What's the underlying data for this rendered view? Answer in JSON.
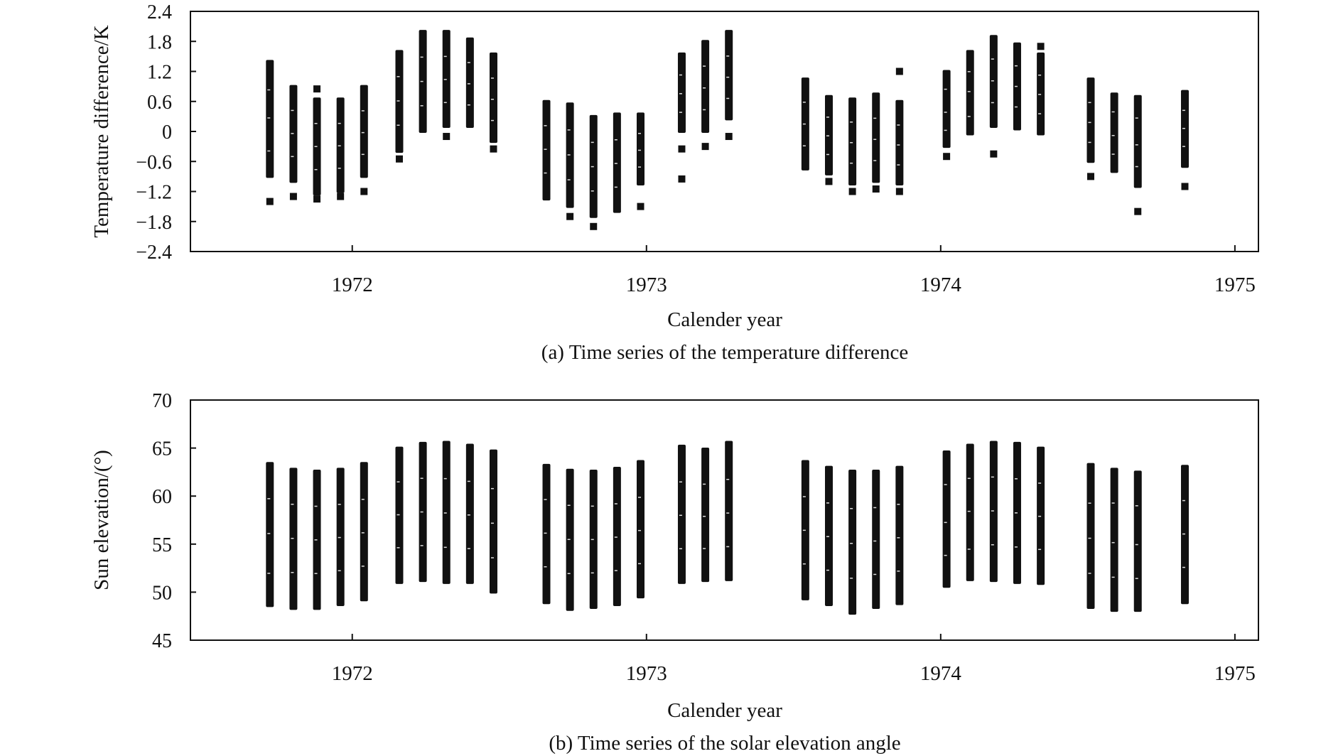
{
  "colors": {
    "marker": "#111111",
    "axis": "#111111",
    "background": "#ffffff"
  },
  "chart_data": [
    {
      "type": "scatter",
      "caption": "(a) Time series of the temperature difference",
      "xlabel": "Calender year",
      "ylabel": "Temperature difference/K",
      "xlim": [
        1971.45,
        1975.08
      ],
      "ylim": [
        -2.4,
        2.4
      ],
      "x_ticks": [
        1972,
        1973,
        1974,
        1975
      ],
      "x_tick_labels": [
        "1972",
        "1973",
        "1974",
        "1975"
      ],
      "y_ticks": [
        2.4,
        1.8,
        1.2,
        0.6,
        0,
        -0.6,
        -1.2,
        -1.8,
        -2.4
      ],
      "y_tick_labels": [
        "2.4",
        "1.8",
        "1.2",
        "0.6",
        "0",
        "−0.6",
        "−1.2",
        "−1.8",
        "−2.4"
      ],
      "clusters": [
        {
          "x": 1971.72,
          "max": 1.4,
          "min": -0.9,
          "outliers": [
            -1.4
          ]
        },
        {
          "x": 1971.8,
          "max": 0.9,
          "min": -1.0,
          "outliers": [
            -1.3
          ]
        },
        {
          "x": 1971.88,
          "max": 0.65,
          "min": -1.25,
          "outliers": [
            0.85,
            -1.35
          ]
        },
        {
          "x": 1971.96,
          "max": 0.65,
          "min": -1.2,
          "outliers": [
            -1.3
          ]
        },
        {
          "x": 1972.04,
          "max": 0.9,
          "min": -0.9,
          "outliers": [
            -1.2
          ]
        },
        {
          "x": 1972.16,
          "max": 1.6,
          "min": -0.4,
          "outliers": [
            -0.55
          ]
        },
        {
          "x": 1972.24,
          "max": 2.0,
          "min": 0.0,
          "outliers": []
        },
        {
          "x": 1972.32,
          "max": 2.0,
          "min": 0.1,
          "outliers": [
            -0.1
          ]
        },
        {
          "x": 1972.4,
          "max": 1.85,
          "min": 0.1,
          "outliers": []
        },
        {
          "x": 1972.48,
          "max": 1.55,
          "min": -0.2,
          "outliers": [
            -0.35
          ]
        },
        {
          "x": 1972.66,
          "max": 0.6,
          "min": -1.35,
          "outliers": []
        },
        {
          "x": 1972.74,
          "max": 0.55,
          "min": -1.5,
          "outliers": [
            -1.7
          ]
        },
        {
          "x": 1972.82,
          "max": 0.3,
          "min": -1.7,
          "outliers": [
            -1.9
          ]
        },
        {
          "x": 1972.9,
          "max": 0.35,
          "min": -1.6,
          "outliers": []
        },
        {
          "x": 1972.98,
          "max": 0.35,
          "min": -1.05,
          "outliers": [
            -1.5
          ]
        },
        {
          "x": 1973.12,
          "max": 1.55,
          "min": 0.0,
          "outliers": [
            -0.35,
            -0.95
          ]
        },
        {
          "x": 1973.2,
          "max": 1.8,
          "min": 0.0,
          "outliers": [
            -0.3
          ]
        },
        {
          "x": 1973.28,
          "max": 2.0,
          "min": 0.25,
          "outliers": [
            -0.1
          ]
        },
        {
          "x": 1973.54,
          "max": 1.05,
          "min": -0.75,
          "outliers": []
        },
        {
          "x": 1973.62,
          "max": 0.7,
          "min": -0.85,
          "outliers": [
            -1.0
          ]
        },
        {
          "x": 1973.7,
          "max": 0.65,
          "min": -1.05,
          "outliers": [
            -1.2
          ]
        },
        {
          "x": 1973.78,
          "max": 0.75,
          "min": -1.0,
          "outliers": [
            -1.15
          ]
        },
        {
          "x": 1973.86,
          "max": 0.6,
          "min": -1.05,
          "outliers": [
            1.2,
            -1.2
          ]
        },
        {
          "x": 1974.02,
          "max": 1.2,
          "min": -0.3,
          "outliers": [
            -0.5
          ]
        },
        {
          "x": 1974.1,
          "max": 1.6,
          "min": -0.05,
          "outliers": []
        },
        {
          "x": 1974.18,
          "max": 1.9,
          "min": 0.1,
          "outliers": [
            -0.45
          ]
        },
        {
          "x": 1974.26,
          "max": 1.75,
          "min": 0.05,
          "outliers": []
        },
        {
          "x": 1974.34,
          "max": 1.55,
          "min": -0.05,
          "outliers": [
            1.7
          ]
        },
        {
          "x": 1974.51,
          "max": 1.05,
          "min": -0.6,
          "outliers": [
            -0.9
          ]
        },
        {
          "x": 1974.59,
          "max": 0.75,
          "min": -0.8,
          "outliers": []
        },
        {
          "x": 1974.67,
          "max": 0.7,
          "min": -1.1,
          "outliers": [
            -1.6
          ]
        },
        {
          "x": 1974.83,
          "max": 0.8,
          "min": -0.7,
          "outliers": [
            -1.1
          ]
        }
      ]
    },
    {
      "type": "scatter",
      "caption": "(b) Time series of the solar elevation angle",
      "xlabel": "Calender year",
      "ylabel": "Sun elevation/(°)",
      "xlim": [
        1971.45,
        1975.08
      ],
      "ylim": [
        45,
        70
      ],
      "x_ticks": [
        1972,
        1973,
        1974,
        1975
      ],
      "x_tick_labels": [
        "1972",
        "1973",
        "1974",
        "1975"
      ],
      "y_ticks": [
        70,
        65,
        60,
        55,
        50,
        45
      ],
      "y_tick_labels": [
        "70",
        "65",
        "60",
        "55",
        "50",
        "45"
      ],
      "clusters": [
        {
          "x": 1971.72,
          "max": 63.4,
          "min": 48.6,
          "outliers": []
        },
        {
          "x": 1971.8,
          "max": 62.8,
          "min": 48.3,
          "outliers": []
        },
        {
          "x": 1971.88,
          "max": 62.6,
          "min": 48.3,
          "outliers": []
        },
        {
          "x": 1971.96,
          "max": 62.8,
          "min": 48.7,
          "outliers": []
        },
        {
          "x": 1972.04,
          "max": 63.4,
          "min": 49.2,
          "outliers": []
        },
        {
          "x": 1972.16,
          "max": 65.0,
          "min": 51.0,
          "outliers": []
        },
        {
          "x": 1972.24,
          "max": 65.5,
          "min": 51.2,
          "outliers": []
        },
        {
          "x": 1972.32,
          "max": 65.6,
          "min": 51.0,
          "outliers": []
        },
        {
          "x": 1972.4,
          "max": 65.3,
          "min": 51.0,
          "outliers": []
        },
        {
          "x": 1972.48,
          "max": 64.7,
          "min": 50.0,
          "outliers": []
        },
        {
          "x": 1972.66,
          "max": 63.2,
          "min": 48.9,
          "outliers": []
        },
        {
          "x": 1972.74,
          "max": 62.7,
          "min": 48.2,
          "outliers": []
        },
        {
          "x": 1972.82,
          "max": 62.6,
          "min": 48.4,
          "outliers": []
        },
        {
          "x": 1972.9,
          "max": 62.9,
          "min": 48.7,
          "outliers": []
        },
        {
          "x": 1972.98,
          "max": 63.6,
          "min": 49.5,
          "outliers": []
        },
        {
          "x": 1973.12,
          "max": 65.2,
          "min": 51.0,
          "outliers": []
        },
        {
          "x": 1973.2,
          "max": 64.9,
          "min": 51.2,
          "outliers": []
        },
        {
          "x": 1973.28,
          "max": 65.6,
          "min": 51.3,
          "outliers": []
        },
        {
          "x": 1973.54,
          "max": 63.6,
          "min": 49.3,
          "outliers": []
        },
        {
          "x": 1973.62,
          "max": 63.0,
          "min": 48.7,
          "outliers": []
        },
        {
          "x": 1973.7,
          "max": 62.6,
          "min": 47.8,
          "outliers": []
        },
        {
          "x": 1973.78,
          "max": 62.6,
          "min": 48.4,
          "outliers": []
        },
        {
          "x": 1973.86,
          "max": 63.0,
          "min": 48.8,
          "outliers": []
        },
        {
          "x": 1974.02,
          "max": 64.6,
          "min": 50.6,
          "outliers": []
        },
        {
          "x": 1974.1,
          "max": 65.3,
          "min": 51.3,
          "outliers": []
        },
        {
          "x": 1974.18,
          "max": 65.6,
          "min": 51.2,
          "outliers": []
        },
        {
          "x": 1974.26,
          "max": 65.5,
          "min": 51.0,
          "outliers": []
        },
        {
          "x": 1974.34,
          "max": 65.0,
          "min": 50.9,
          "outliers": []
        },
        {
          "x": 1974.51,
          "max": 63.3,
          "min": 48.4,
          "outliers": []
        },
        {
          "x": 1974.59,
          "max": 62.8,
          "min": 48.1,
          "outliers": []
        },
        {
          "x": 1974.67,
          "max": 62.5,
          "min": 48.1,
          "outliers": []
        },
        {
          "x": 1974.83,
          "max": 63.1,
          "min": 48.9,
          "outliers": []
        }
      ]
    }
  ]
}
